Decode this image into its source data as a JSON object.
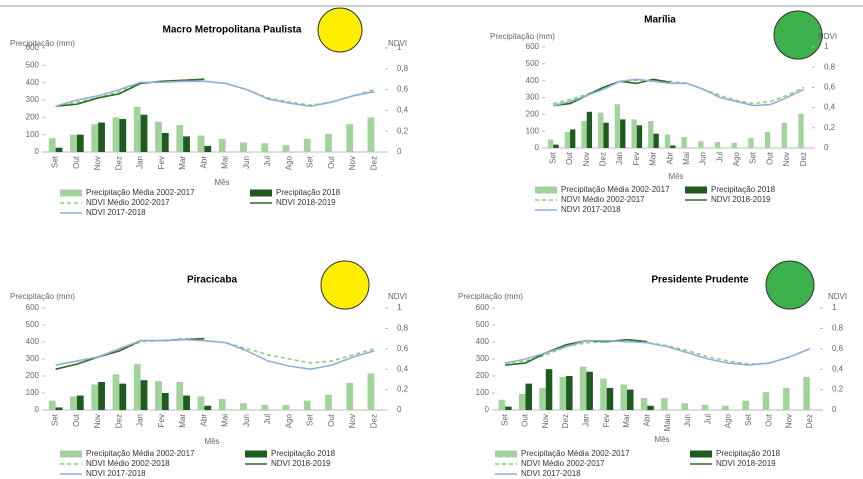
{
  "chart_data": [
    {
      "type": "combo",
      "title": "Macro Metropolitana Paulista",
      "indicator_color": "#ffee00",
      "ylabel": "Precipitação (mm)",
      "y2label": "NDVI",
      "xlabel": "Mês",
      "categories": [
        "Set",
        "Out",
        "Nov",
        "Dez",
        "Jan",
        "Fev",
        "Mar",
        "Abr",
        "Mai",
        "Jun",
        "Jul",
        "Ago",
        "Set",
        "Out",
        "Nov",
        "Dez"
      ],
      "ylim": [
        0,
        600
      ],
      "yticks": [
        0,
        100,
        200,
        300,
        400,
        500,
        600
      ],
      "y2lim": [
        0,
        1
      ],
      "y2ticks": [
        0,
        {
          "value": 0.2,
          "label": "0,2"
        },
        {
          "value": 0.4,
          "label": "0,4"
        },
        {
          "value": 0.6,
          "label": "0,6"
        },
        {
          "value": 0.8,
          "label": "0,8"
        },
        1
      ],
      "series": [
        {
          "name": "Precipitação Média 2002-2017",
          "type": "bar",
          "color": "#a3d39c",
          "values": [
            80,
            100,
            160,
            200,
            260,
            175,
            155,
            95,
            75,
            55,
            50,
            40,
            75,
            105,
            160,
            200
          ]
        },
        {
          "name": "Precipitação 2018",
          "type": "bar",
          "color": "#1f5a1f",
          "values": [
            25,
            100,
            170,
            190,
            215,
            110,
            90,
            35,
            null,
            null,
            null,
            null,
            null,
            null,
            null,
            null
          ]
        },
        {
          "name": "NDVI Médio 2002-2017",
          "type": "line",
          "axis": "y2",
          "dashed": true,
          "color": "#8fcf7a",
          "values": [
            0.44,
            0.48,
            0.52,
            0.58,
            0.66,
            0.68,
            0.69,
            0.68,
            0.66,
            0.6,
            0.52,
            0.48,
            0.45,
            0.48,
            0.54,
            0.6
          ]
        },
        {
          "name": "NDVI 2018-2019",
          "type": "line",
          "axis": "y2",
          "color": "#2e6b1e",
          "values": [
            0.44,
            0.46,
            0.52,
            0.56,
            0.66,
            0.68,
            0.69,
            0.7,
            null,
            null,
            null,
            null,
            null,
            null,
            null,
            null
          ]
        },
        {
          "name": "NDVI 2017-2018",
          "type": "line",
          "axis": "y2",
          "color": "#8fb0dc",
          "values": [
            0.44,
            0.5,
            0.54,
            0.6,
            0.67,
            0.67,
            0.68,
            0.68,
            0.66,
            0.6,
            0.51,
            0.47,
            0.44,
            0.48,
            0.54,
            0.58
          ]
        }
      ]
    },
    {
      "type": "combo",
      "title": "Marília",
      "indicator_color": "#3cb04a",
      "ylabel": "Precipitação (mm)",
      "y2label": "NDVI",
      "xlabel": "Mês",
      "categories": [
        "Set",
        "Out",
        "Nov",
        "Dez",
        "Jan",
        "Fev",
        "Mar",
        "Abr",
        "Mai",
        "Jun",
        "Jul",
        "Ago",
        "Set",
        "Out",
        "Nov",
        "Dez"
      ],
      "ylim": [
        0,
        600
      ],
      "yticks": [
        0,
        100,
        200,
        300,
        400,
        500,
        600
      ],
      "y2lim": [
        0,
        1
      ],
      "y2ticks": [
        0,
        {
          "value": 0.2,
          "label": "0,2"
        },
        {
          "value": 0.4,
          "label": "0,4"
        },
        {
          "value": 0.6,
          "label": "0,6"
        },
        {
          "value": 0.8,
          "label": "0,8"
        },
        1
      ],
      "series": [
        {
          "name": "Precipitação Média 2002-2017",
          "type": "bar",
          "color": "#a3d39c",
          "values": [
            50,
            95,
            160,
            210,
            260,
            170,
            160,
            80,
            65,
            40,
            35,
            30,
            60,
            95,
            150,
            205
          ]
        },
        {
          "name": "Precipitação 2018",
          "type": "bar",
          "color": "#1f5a1f",
          "values": [
            20,
            110,
            215,
            150,
            170,
            135,
            85,
            15,
            null,
            null,
            null,
            null,
            null,
            null,
            null,
            null
          ]
        },
        {
          "name": "NDVI Médio 2002-2017",
          "type": "line",
          "axis": "y2",
          "dashed": true,
          "color": "#8fcf7a",
          "values": [
            0.44,
            0.48,
            0.53,
            0.6,
            0.66,
            0.67,
            0.67,
            0.66,
            0.64,
            0.58,
            0.52,
            0.47,
            0.44,
            0.46,
            0.52,
            0.6
          ]
        },
        {
          "name": "NDVI 2018-2019",
          "type": "line",
          "axis": "y2",
          "color": "#2e6b1e",
          "values": [
            0.42,
            0.44,
            0.52,
            0.6,
            0.66,
            0.64,
            0.68,
            0.65,
            null,
            null,
            null,
            null,
            null,
            null,
            null,
            null
          ]
        },
        {
          "name": "NDVI 2017-2018",
          "type": "line",
          "axis": "y2",
          "color": "#8fb0dc",
          "values": [
            0.42,
            0.46,
            0.52,
            0.58,
            0.66,
            0.68,
            0.66,
            0.64,
            0.64,
            0.58,
            0.5,
            0.46,
            0.42,
            0.43,
            0.5,
            0.58
          ]
        }
      ]
    },
    {
      "type": "combo",
      "title": "Piracicaba",
      "indicator_color": "#ffee00",
      "ylabel": "Precipitação (mm)",
      "y2label": "NDVI",
      "xlabel": "Mês",
      "categories": [
        "Set",
        "Out",
        "Nov",
        "Dez",
        "Jan",
        "Fev",
        "Mar",
        "Abr",
        "Mai",
        "Jun",
        "Jul",
        "Ago",
        "Set",
        "Out",
        "Nov",
        "Dez"
      ],
      "ylim": [
        0,
        600
      ],
      "yticks": [
        0,
        100,
        200,
        300,
        400,
        500,
        600
      ],
      "y2lim": [
        0,
        1
      ],
      "y2ticks": [
        0,
        {
          "value": 0.2,
          "label": "0,2"
        },
        {
          "value": 0.4,
          "label": "0,4"
        },
        {
          "value": 0.6,
          "label": "0,6"
        },
        {
          "value": 0.8,
          "label": "0,8"
        },
        1
      ],
      "series": [
        {
          "name": "Precipitação Média 2002-2017",
          "type": "bar",
          "color": "#a3d39c",
          "values": [
            55,
            80,
            150,
            210,
            270,
            170,
            165,
            80,
            65,
            40,
            30,
            30,
            55,
            90,
            160,
            215
          ]
        },
        {
          "name": "Precipitação 2018",
          "type": "bar",
          "color": "#1f5a1f",
          "values": [
            15,
            85,
            165,
            155,
            175,
            100,
            85,
            25,
            null,
            null,
            null,
            null,
            null,
            null,
            null,
            null
          ]
        },
        {
          "name": "NDVI Médio 2002-2018",
          "type": "line",
          "axis": "y2",
          "dashed": true,
          "color": "#8fcf7a",
          "values": [
            0.44,
            0.48,
            0.52,
            0.58,
            0.67,
            0.68,
            0.7,
            0.68,
            0.66,
            0.6,
            0.54,
            0.5,
            0.46,
            0.48,
            0.54,
            0.6
          ]
        },
        {
          "name": "NDVI 2018-2019",
          "type": "line",
          "axis": "y2",
          "color": "#2e6b1e",
          "values": [
            0.4,
            0.45,
            0.52,
            0.58,
            0.68,
            0.68,
            0.69,
            0.7,
            null,
            null,
            null,
            null,
            null,
            null,
            null,
            null
          ]
        },
        {
          "name": "NDVI 2017-2018",
          "type": "line",
          "axis": "y2",
          "color": "#8fb0dc",
          "values": [
            0.44,
            0.48,
            0.52,
            0.6,
            0.68,
            0.68,
            0.69,
            0.68,
            0.66,
            0.58,
            0.48,
            0.43,
            0.4,
            0.44,
            0.52,
            0.58
          ]
        }
      ]
    },
    {
      "type": "combo",
      "title": "Presidente Prudente",
      "indicator_color": "#3cb04a",
      "ylabel": "Precipitação (mm)",
      "y2label": "NDVI",
      "xlabel": "Mês",
      "categories": [
        "Set",
        "Out",
        "Nov",
        "Dez",
        "Jan",
        "Fev",
        "Mar",
        "Abr",
        "Maio",
        "Jun",
        "Jul",
        "Ago",
        "Set",
        "Out",
        "Nov",
        "Dez"
      ],
      "ylim": [
        0,
        600
      ],
      "yticks": [
        0,
        100,
        200,
        300,
        400,
        500,
        600
      ],
      "y2lim": [
        0,
        1
      ],
      "y2ticks": [
        0,
        {
          "value": 0.2,
          "label": "0,2"
        },
        {
          "value": 0.4,
          "label": "0,4"
        },
        {
          "value": 0.6,
          "label": "0,6"
        },
        {
          "value": 0.8,
          "label": "0,8"
        },
        1
      ],
      "series": [
        {
          "name": "Precipitação Média 2002-2017",
          "type": "bar",
          "color": "#a3d39c",
          "values": [
            60,
            95,
            130,
            195,
            255,
            185,
            150,
            70,
            70,
            40,
            30,
            25,
            55,
            105,
            130,
            195
          ]
        },
        {
          "name": "Precipitação 2018",
          "type": "bar",
          "color": "#1f5a1f",
          "values": [
            20,
            155,
            240,
            200,
            225,
            130,
            120,
            25,
            null,
            null,
            null,
            null,
            null,
            null,
            null,
            null
          ]
        },
        {
          "name": "NDVI Médio 2002-2017",
          "type": "line",
          "axis": "y2",
          "dashed": true,
          "color": "#8fcf7a",
          "values": [
            0.46,
            0.48,
            0.54,
            0.62,
            0.66,
            0.67,
            0.68,
            0.66,
            0.63,
            0.58,
            0.52,
            0.48,
            0.45,
            0.46,
            0.52,
            0.6
          ]
        },
        {
          "name": "NDVI 2018-2019",
          "type": "line",
          "axis": "y2",
          "color": "#2e6b1e",
          "values": [
            0.44,
            0.46,
            0.56,
            0.64,
            0.68,
            0.67,
            0.69,
            0.67,
            null,
            null,
            null,
            null,
            null,
            null,
            null,
            null
          ]
        },
        {
          "name": "NDVI 2017-2018",
          "type": "line",
          "axis": "y2",
          "color": "#8fb0dc",
          "values": [
            0.46,
            0.5,
            0.56,
            0.62,
            0.68,
            0.68,
            0.67,
            0.66,
            0.62,
            0.56,
            0.5,
            0.46,
            0.44,
            0.46,
            0.52,
            0.6
          ]
        }
      ]
    }
  ]
}
